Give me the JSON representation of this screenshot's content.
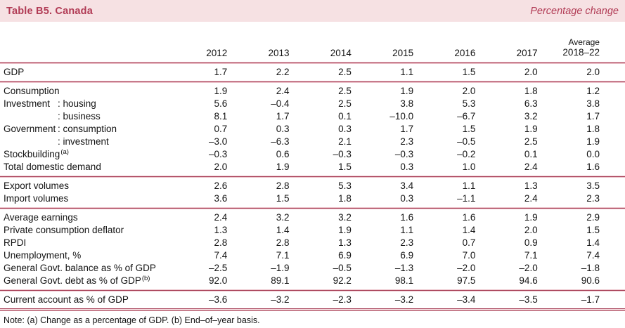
{
  "title": "Table B5. Canada",
  "subtitle": "Percentage change",
  "columns": [
    "2012",
    "2013",
    "2014",
    "2015",
    "2016",
    "2017"
  ],
  "avg_column": {
    "line1": "Average",
    "line2": "2018–22"
  },
  "note": "Note: (a) Change as a percentage of GDP. (b) End–of–year basis.",
  "colors": {
    "accent": "#b13b55",
    "title_bar_bg": "#f6e1e3",
    "rule": "#a63d55"
  },
  "sections": [
    {
      "rows": [
        {
          "label": "GDP",
          "values": [
            "1.7",
            "2.2",
            "2.5",
            "1.1",
            "1.5",
            "2.0",
            "2.0"
          ]
        }
      ]
    },
    {
      "rows": [
        {
          "label": "Consumption",
          "values": [
            "1.9",
            "2.4",
            "2.5",
            "1.9",
            "2.0",
            "1.8",
            "1.2"
          ]
        },
        {
          "group": "Investment",
          "sub": ": housing",
          "values": [
            "5.6",
            "–0.4",
            "2.5",
            "3.8",
            "5.3",
            "6.3",
            "3.8"
          ]
        },
        {
          "group": "",
          "sub": ": business",
          "values": [
            "8.1",
            "1.7",
            "0.1",
            "–10.0",
            "–6.7",
            "3.2",
            "1.7"
          ]
        },
        {
          "group": "Government",
          "sub": ": consumption",
          "values": [
            "0.7",
            "0.3",
            "0.3",
            "1.7",
            "1.5",
            "1.9",
            "1.8"
          ]
        },
        {
          "group": "",
          "sub": ": investment",
          "values": [
            "–3.0",
            "–6.3",
            "2.1",
            "2.3",
            "–0.5",
            "2.5",
            "1.9"
          ]
        },
        {
          "label": "Stockbuilding",
          "sup": "(a)",
          "values": [
            "–0.3",
            "0.6",
            "–0.3",
            "–0.3",
            "–0.2",
            "0.1",
            "0.0"
          ]
        },
        {
          "label": "Total domestic demand",
          "values": [
            "2.0",
            "1.9",
            "1.5",
            "0.3",
            "1.0",
            "2.4",
            "1.6"
          ]
        }
      ]
    },
    {
      "rows": [
        {
          "label": "Export volumes",
          "values": [
            "2.6",
            "2.8",
            "5.3",
            "3.4",
            "1.1",
            "1.3",
            "3.5"
          ]
        },
        {
          "label": "Import volumes",
          "values": [
            "3.6",
            "1.5",
            "1.8",
            "0.3",
            "–1.1",
            "2.4",
            "2.3"
          ]
        }
      ]
    },
    {
      "rows": [
        {
          "label": "Average earnings",
          "values": [
            "2.4",
            "3.2",
            "3.2",
            "1.6",
            "1.6",
            "1.9",
            "2.9"
          ]
        },
        {
          "label": "Private consumption deflator",
          "values": [
            "1.3",
            "1.4",
            "1.9",
            "1.1",
            "1.4",
            "2.0",
            "1.5"
          ]
        },
        {
          "label": "RPDI",
          "values": [
            "2.8",
            "2.8",
            "1.3",
            "2.3",
            "0.7",
            "0.9",
            "1.4"
          ]
        },
        {
          "label": "Unemployment, %",
          "values": [
            "7.4",
            "7.1",
            "6.9",
            "6.9",
            "7.0",
            "7.1",
            "7.4"
          ]
        },
        {
          "label": "General Govt. balance as % of GDP",
          "values": [
            "–2.5",
            "–1.9",
            "–0.5",
            "–1.3",
            "–2.0",
            "–2.0",
            "–1.8"
          ]
        },
        {
          "label": "General Govt. debt as % of GDP",
          "sup": "(b)",
          "values": [
            "92.0",
            "89.1",
            "92.2",
            "98.1",
            "97.5",
            "94.6",
            "90.6"
          ]
        }
      ]
    },
    {
      "rows": [
        {
          "label": "Current account as % of GDP",
          "values": [
            "–3.6",
            "–3.2",
            "–2.3",
            "–3.2",
            "–3.4",
            "–3.5",
            "–1.7"
          ]
        }
      ]
    }
  ]
}
